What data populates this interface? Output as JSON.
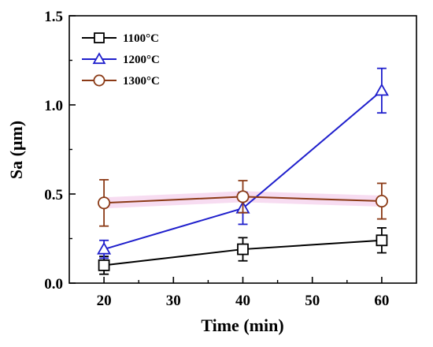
{
  "chart_data": {
    "type": "line",
    "title": "",
    "xlabel": "Time (min)",
    "ylabel": "Sa (μm)",
    "xlim": [
      15,
      65
    ],
    "ylim": [
      0.0,
      1.5
    ],
    "xticks": [
      20,
      30,
      40,
      50,
      60
    ],
    "yticks": [
      0.0,
      0.5,
      1.0,
      1.5
    ],
    "xtick_labels": [
      "20",
      "30",
      "40",
      "50",
      "60"
    ],
    "ytick_labels": [
      "0.0",
      "0.5",
      "1.0",
      "1.5"
    ],
    "x": [
      20,
      40,
      60
    ],
    "legend_position": "top-left",
    "grid": false,
    "series": [
      {
        "name": "1100°C",
        "color": "#000000",
        "marker": "square",
        "values": [
          0.1,
          0.19,
          0.24
        ],
        "errors": [
          0.05,
          0.065,
          0.07
        ]
      },
      {
        "name": "1200°C",
        "color": "#1f1fcc",
        "marker": "triangle",
        "values": [
          0.19,
          0.42,
          1.08
        ],
        "errors": [
          0.05,
          0.09,
          0.125
        ]
      },
      {
        "name": "1300°C",
        "color": "#8b3a16",
        "marker": "circle",
        "values": [
          0.45,
          0.485,
          0.46
        ],
        "errors": [
          0.13,
          0.09,
          0.1
        ]
      }
    ]
  }
}
